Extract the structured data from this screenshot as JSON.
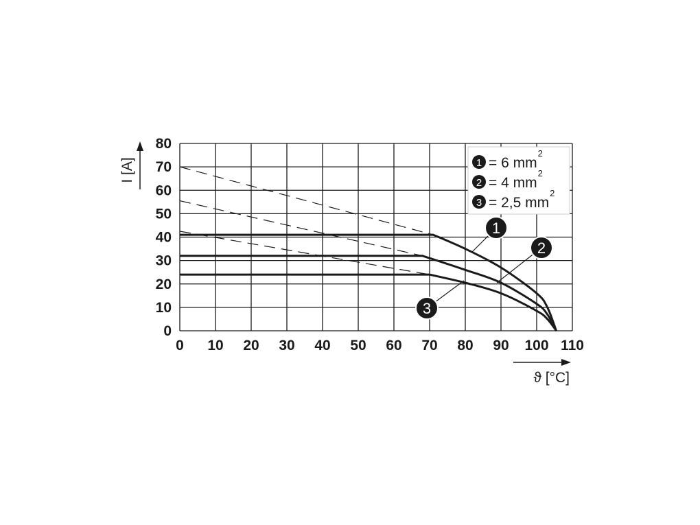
{
  "chart_data": {
    "type": "line",
    "xlabel": "ϑ [°C]",
    "ylabel": "I [A]",
    "xlim": [
      0,
      110
    ],
    "ylim": [
      0,
      80
    ],
    "xticks": [
      "0",
      "10",
      "20",
      "30",
      "40",
      "50",
      "60",
      "70",
      "80",
      "90",
      "100",
      "110"
    ],
    "yticks": [
      "0",
      "10",
      "20",
      "30",
      "40",
      "50",
      "60",
      "70",
      "80"
    ],
    "grid": true,
    "legend_position": "top-right",
    "legend": [
      {
        "marker": "1",
        "text": "= 6 mm",
        "sup": "2"
      },
      {
        "marker": "2",
        "text": "= 4 mm",
        "sup": "2"
      },
      {
        "marker": "3",
        "text": "= 2,5 mm",
        "sup": "2"
      }
    ],
    "series": [
      {
        "marker": "1",
        "points": [
          [
            0,
            41
          ],
          [
            71,
            41
          ],
          [
            80,
            35
          ],
          [
            90,
            27
          ],
          [
            100,
            16
          ],
          [
            103,
            10
          ],
          [
            105.5,
            0
          ]
        ],
        "dashed": [
          [
            0,
            70
          ],
          [
            71,
            41
          ]
        ]
      },
      {
        "marker": "2",
        "points": [
          [
            0,
            32
          ],
          [
            68,
            32
          ],
          [
            80,
            26
          ],
          [
            90,
            20.5
          ],
          [
            100,
            11.5
          ],
          [
            103,
            7
          ],
          [
            105.5,
            0
          ]
        ],
        "dashed": [
          [
            0,
            55.5
          ],
          [
            68,
            32
          ]
        ]
      },
      {
        "marker": "3",
        "points": [
          [
            0,
            24
          ],
          [
            70,
            24
          ],
          [
            80,
            20.5
          ],
          [
            90,
            16
          ],
          [
            100,
            8.5
          ],
          [
            103,
            5
          ],
          [
            105.5,
            0
          ]
        ],
        "dashed": [
          [
            0,
            42.5
          ],
          [
            70,
            24
          ]
        ]
      }
    ],
    "colors": {
      "line": "#1a1a1a",
      "grid": "#1a1a1a",
      "background": "#ffffff"
    }
  }
}
